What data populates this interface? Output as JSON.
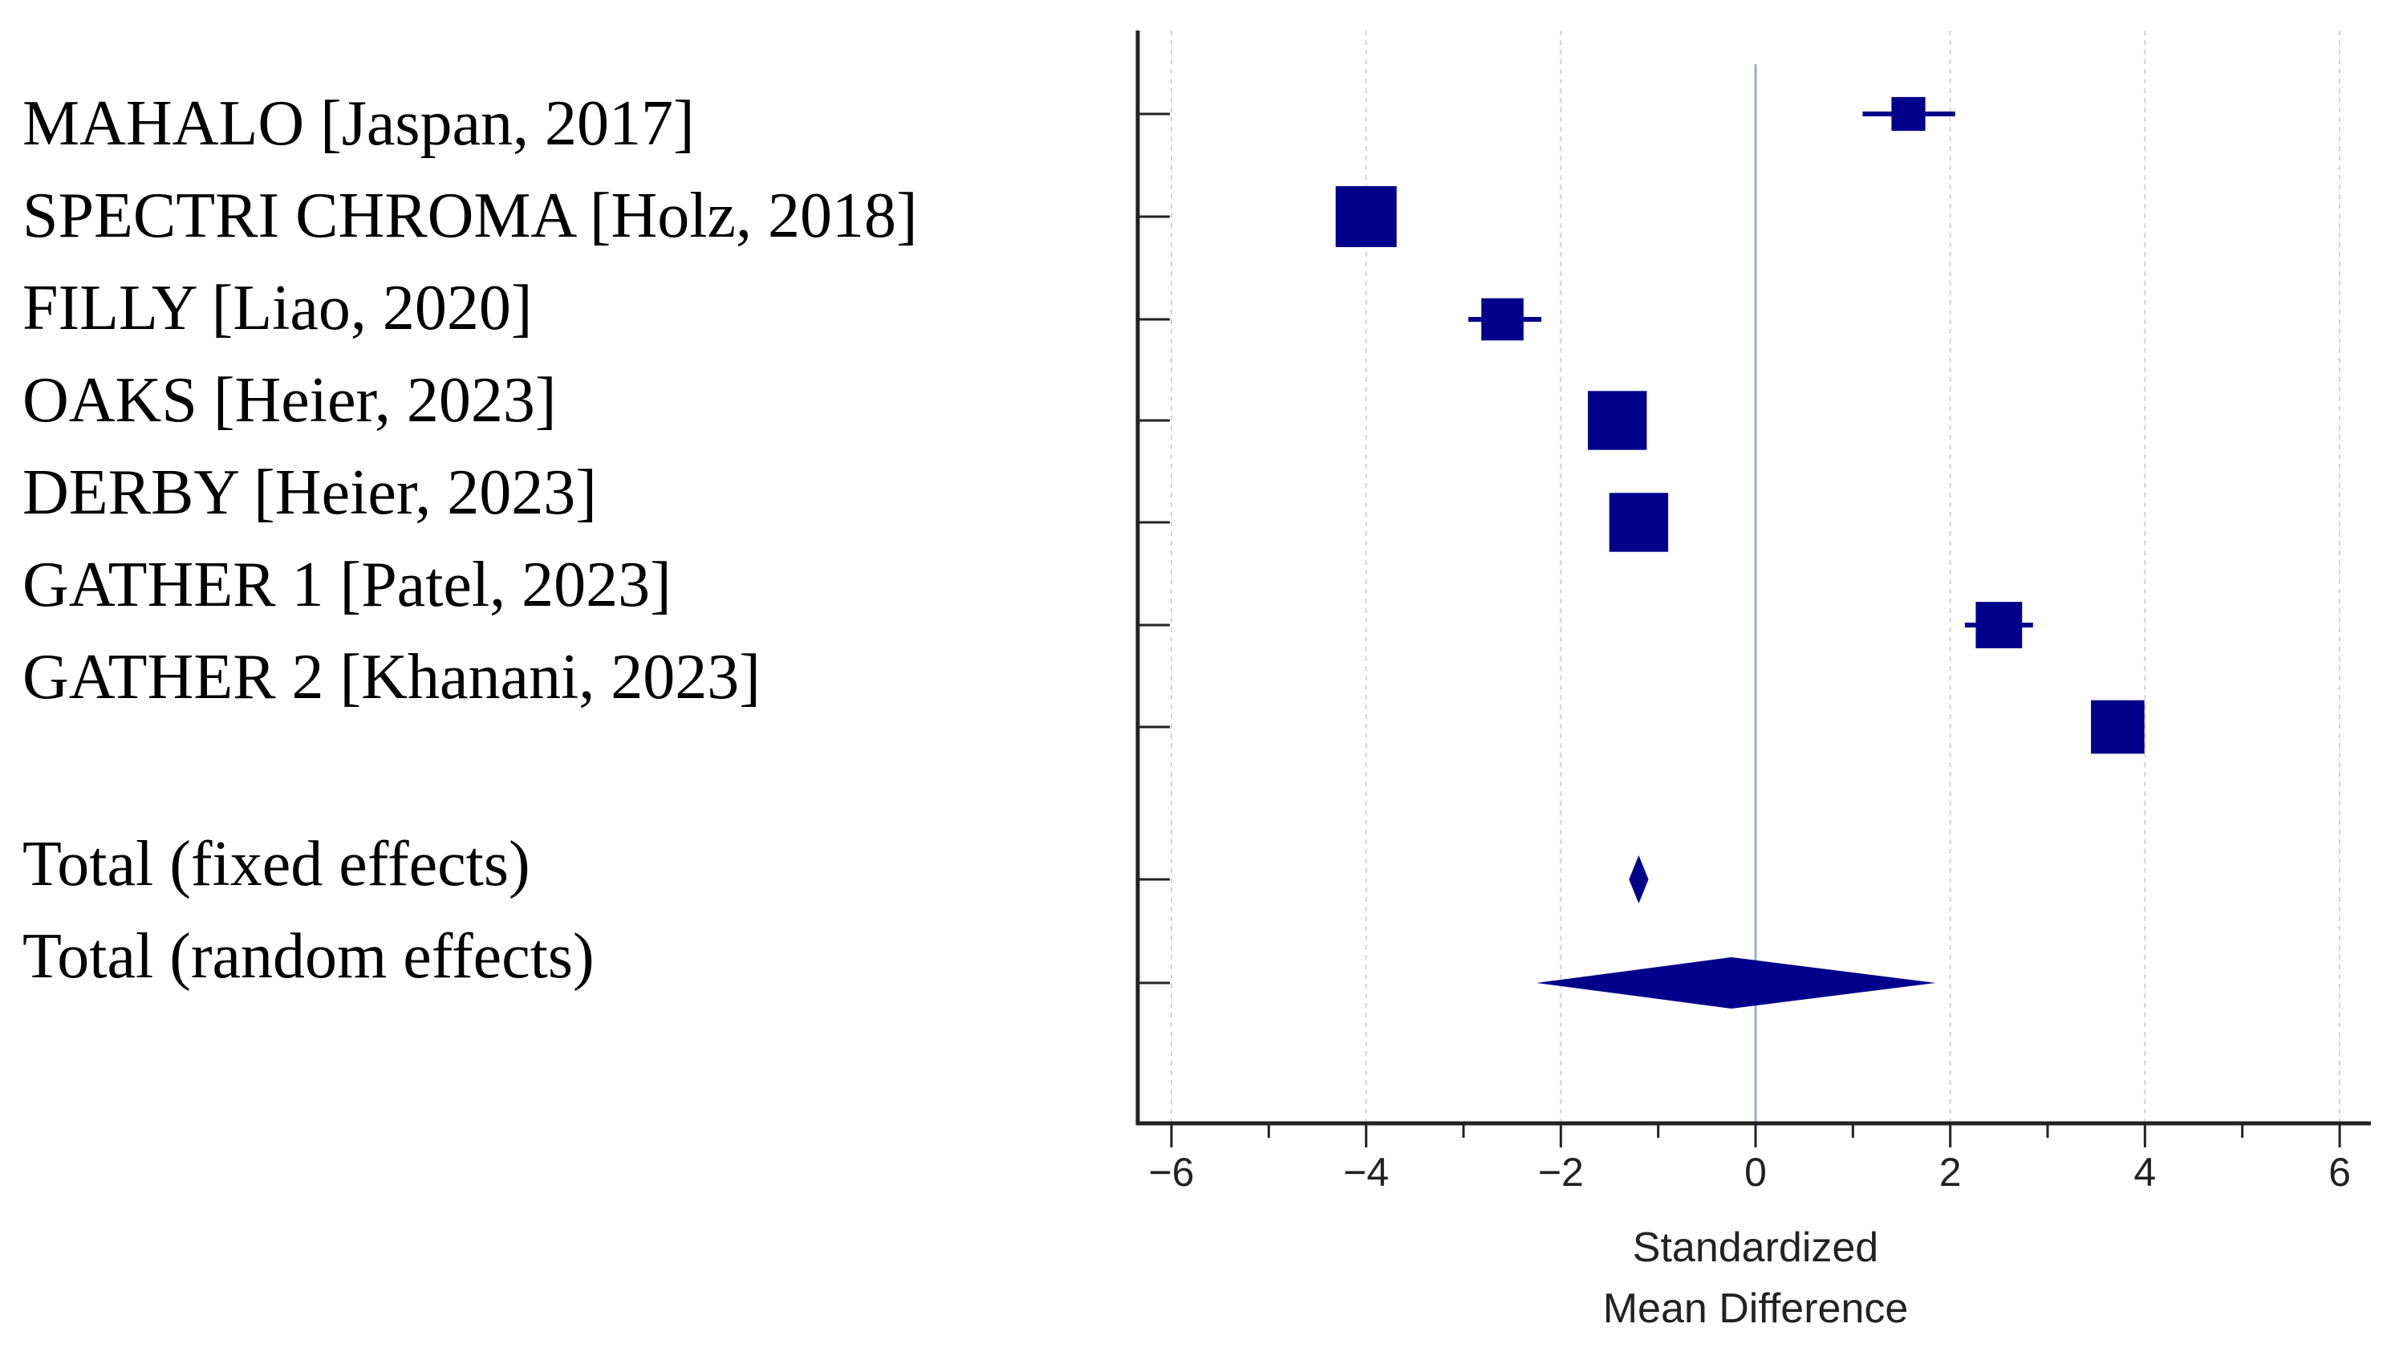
{
  "chart_data": {
    "type": "forest",
    "xlabel_line1": "Standardized",
    "xlabel_line2": "Mean Difference",
    "xlim": [
      -6.3,
      6.3
    ],
    "major_ticks": [
      -6,
      -4,
      -2,
      0,
      2,
      4,
      6
    ],
    "tick_labels": [
      "−6",
      "−4",
      "−2",
      "0",
      "2",
      "4",
      "6"
    ],
    "minor_ticks": [
      -5,
      -3,
      -1,
      1,
      3,
      5
    ],
    "reference_line": 0,
    "marker_color": "#00008b",
    "gridline_color": "#d4d4d4",
    "reference_color": "#8fb3d9",
    "studies": [
      {
        "label": "MAHALO [Jaspan, 2017]",
        "smd": 1.57,
        "ci": [
          1.1,
          2.05
        ],
        "weight": 0.35
      },
      {
        "label": "SPECTRI CHROMA [Holz, 2018]",
        "smd": -4.0,
        "ci": [
          -4.25,
          -3.75
        ],
        "weight": 1.0
      },
      {
        "label": "FILLY [Liao, 2020]",
        "smd": -2.6,
        "ci": [
          -2.95,
          -2.2
        ],
        "weight": 0.55
      },
      {
        "label": "OAKS [Heier, 2023]",
        "smd": -1.42,
        "ci": [
          -1.65,
          -1.2
        ],
        "weight": 0.95
      },
      {
        "label": "DERBY [Heier, 2023]",
        "smd": -1.2,
        "ci": [
          -1.45,
          -0.95
        ],
        "weight": 0.95
      },
      {
        "label": "GATHER 1 [Patel, 2023]",
        "smd": 2.5,
        "ci": [
          2.15,
          2.85
        ],
        "weight": 0.65
      },
      {
        "label": "GATHER 2 [Khanani, 2023]",
        "smd": 3.72,
        "ci": [
          3.45,
          3.98
        ],
        "weight": 0.82
      }
    ],
    "totals": [
      {
        "label": "Total (fixed effects)",
        "smd": -1.2,
        "ci": [
          -1.3,
          -1.1
        ]
      },
      {
        "label": "Total (random effects)",
        "smd": -0.25,
        "ci": [
          -2.25,
          1.85
        ]
      }
    ]
  }
}
